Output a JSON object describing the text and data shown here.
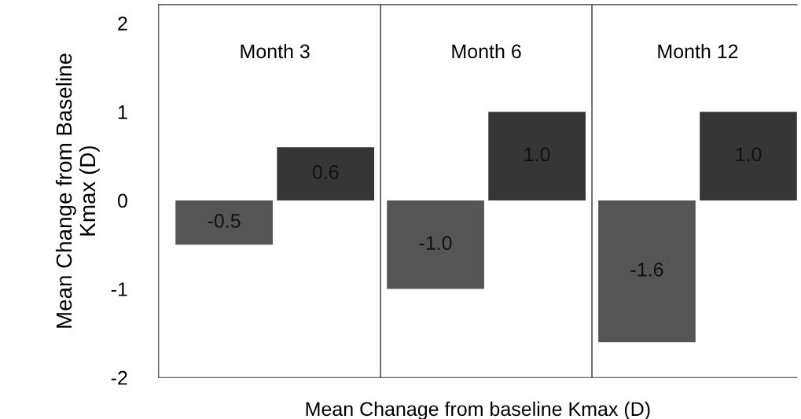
{
  "chart_data": {
    "type": "bar",
    "xlabel": "Mean Chanage from baseline Kmax (D)",
    "ylabel": "Mean Change from Baseline\nKmax (D)",
    "categories": [
      "Month 3",
      "Month 6",
      "Month 12"
    ],
    "series": [
      {
        "color": "#555555",
        "values": [
          -0.5,
          -1.0,
          -1.6
        ],
        "value_labels": [
          "-0.5",
          "-1.0",
          "-1.6"
        ]
      },
      {
        "color": "#363636",
        "values": [
          0.6,
          1.0,
          1.0
        ],
        "value_labels": [
          "0.6",
          "1.0",
          "1.0"
        ]
      }
    ],
    "ylim": [
      -2,
      2.21
    ],
    "yticks": [
      -2,
      -1,
      0,
      1,
      2
    ],
    "grid": "x",
    "legend": false
  }
}
